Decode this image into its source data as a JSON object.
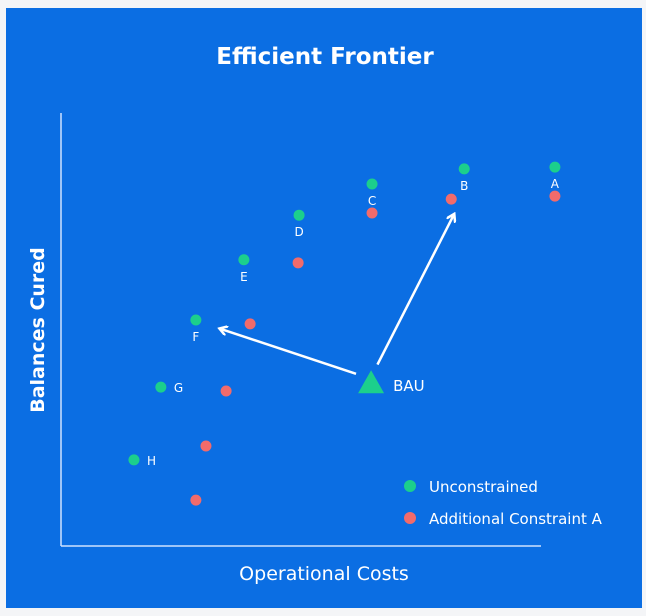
{
  "chart_data": {
    "type": "scatter",
    "title": "Efficient Frontier",
    "xlabel": "Operational Costs",
    "ylabel": "Balances Cured",
    "xlim": [
      0,
      100
    ],
    "ylim": [
      0,
      100
    ],
    "grid": false,
    "ticks": false,
    "legend_position": "bottom-right",
    "series": [
      {
        "name": "Unconstrained",
        "color": "#1ccf8c",
        "points": [
          {
            "label": "A",
            "x": 102.9,
            "y": 87.5
          },
          {
            "label": "B",
            "x": 84.0,
            "y": 87.1
          },
          {
            "label": "C",
            "x": 64.8,
            "y": 83.6
          },
          {
            "label": "D",
            "x": 49.6,
            "y": 76.4
          },
          {
            "label": "E",
            "x": 38.1,
            "y": 66.1
          },
          {
            "label": "F",
            "x": 28.1,
            "y": 52.2
          },
          {
            "label": "G",
            "x": 20.8,
            "y": 36.7
          },
          {
            "label": "H",
            "x": 15.2,
            "y": 19.9
          }
        ]
      },
      {
        "name": "Additional Constraint A",
        "color": "#f26b6b",
        "points": [
          {
            "x": 102.9,
            "y": 80.8
          },
          {
            "x": 81.3,
            "y": 80.1
          },
          {
            "x": 64.8,
            "y": 76.9
          },
          {
            "x": 49.4,
            "y": 65.4
          },
          {
            "x": 39.4,
            "y": 51.3
          },
          {
            "x": 34.4,
            "y": 35.8
          },
          {
            "x": 30.2,
            "y": 23.1
          },
          {
            "x": 28.1,
            "y": 10.6
          }
        ]
      }
    ],
    "annotations": [
      {
        "label": "BAU",
        "marker": "triangle",
        "color": "#1ccf8c",
        "x": 64.6,
        "y": 37.6,
        "arrows_to": [
          "F",
          "B"
        ]
      }
    ]
  },
  "colors": {
    "background": "#0b6ee3",
    "text": "#ffffff"
  }
}
